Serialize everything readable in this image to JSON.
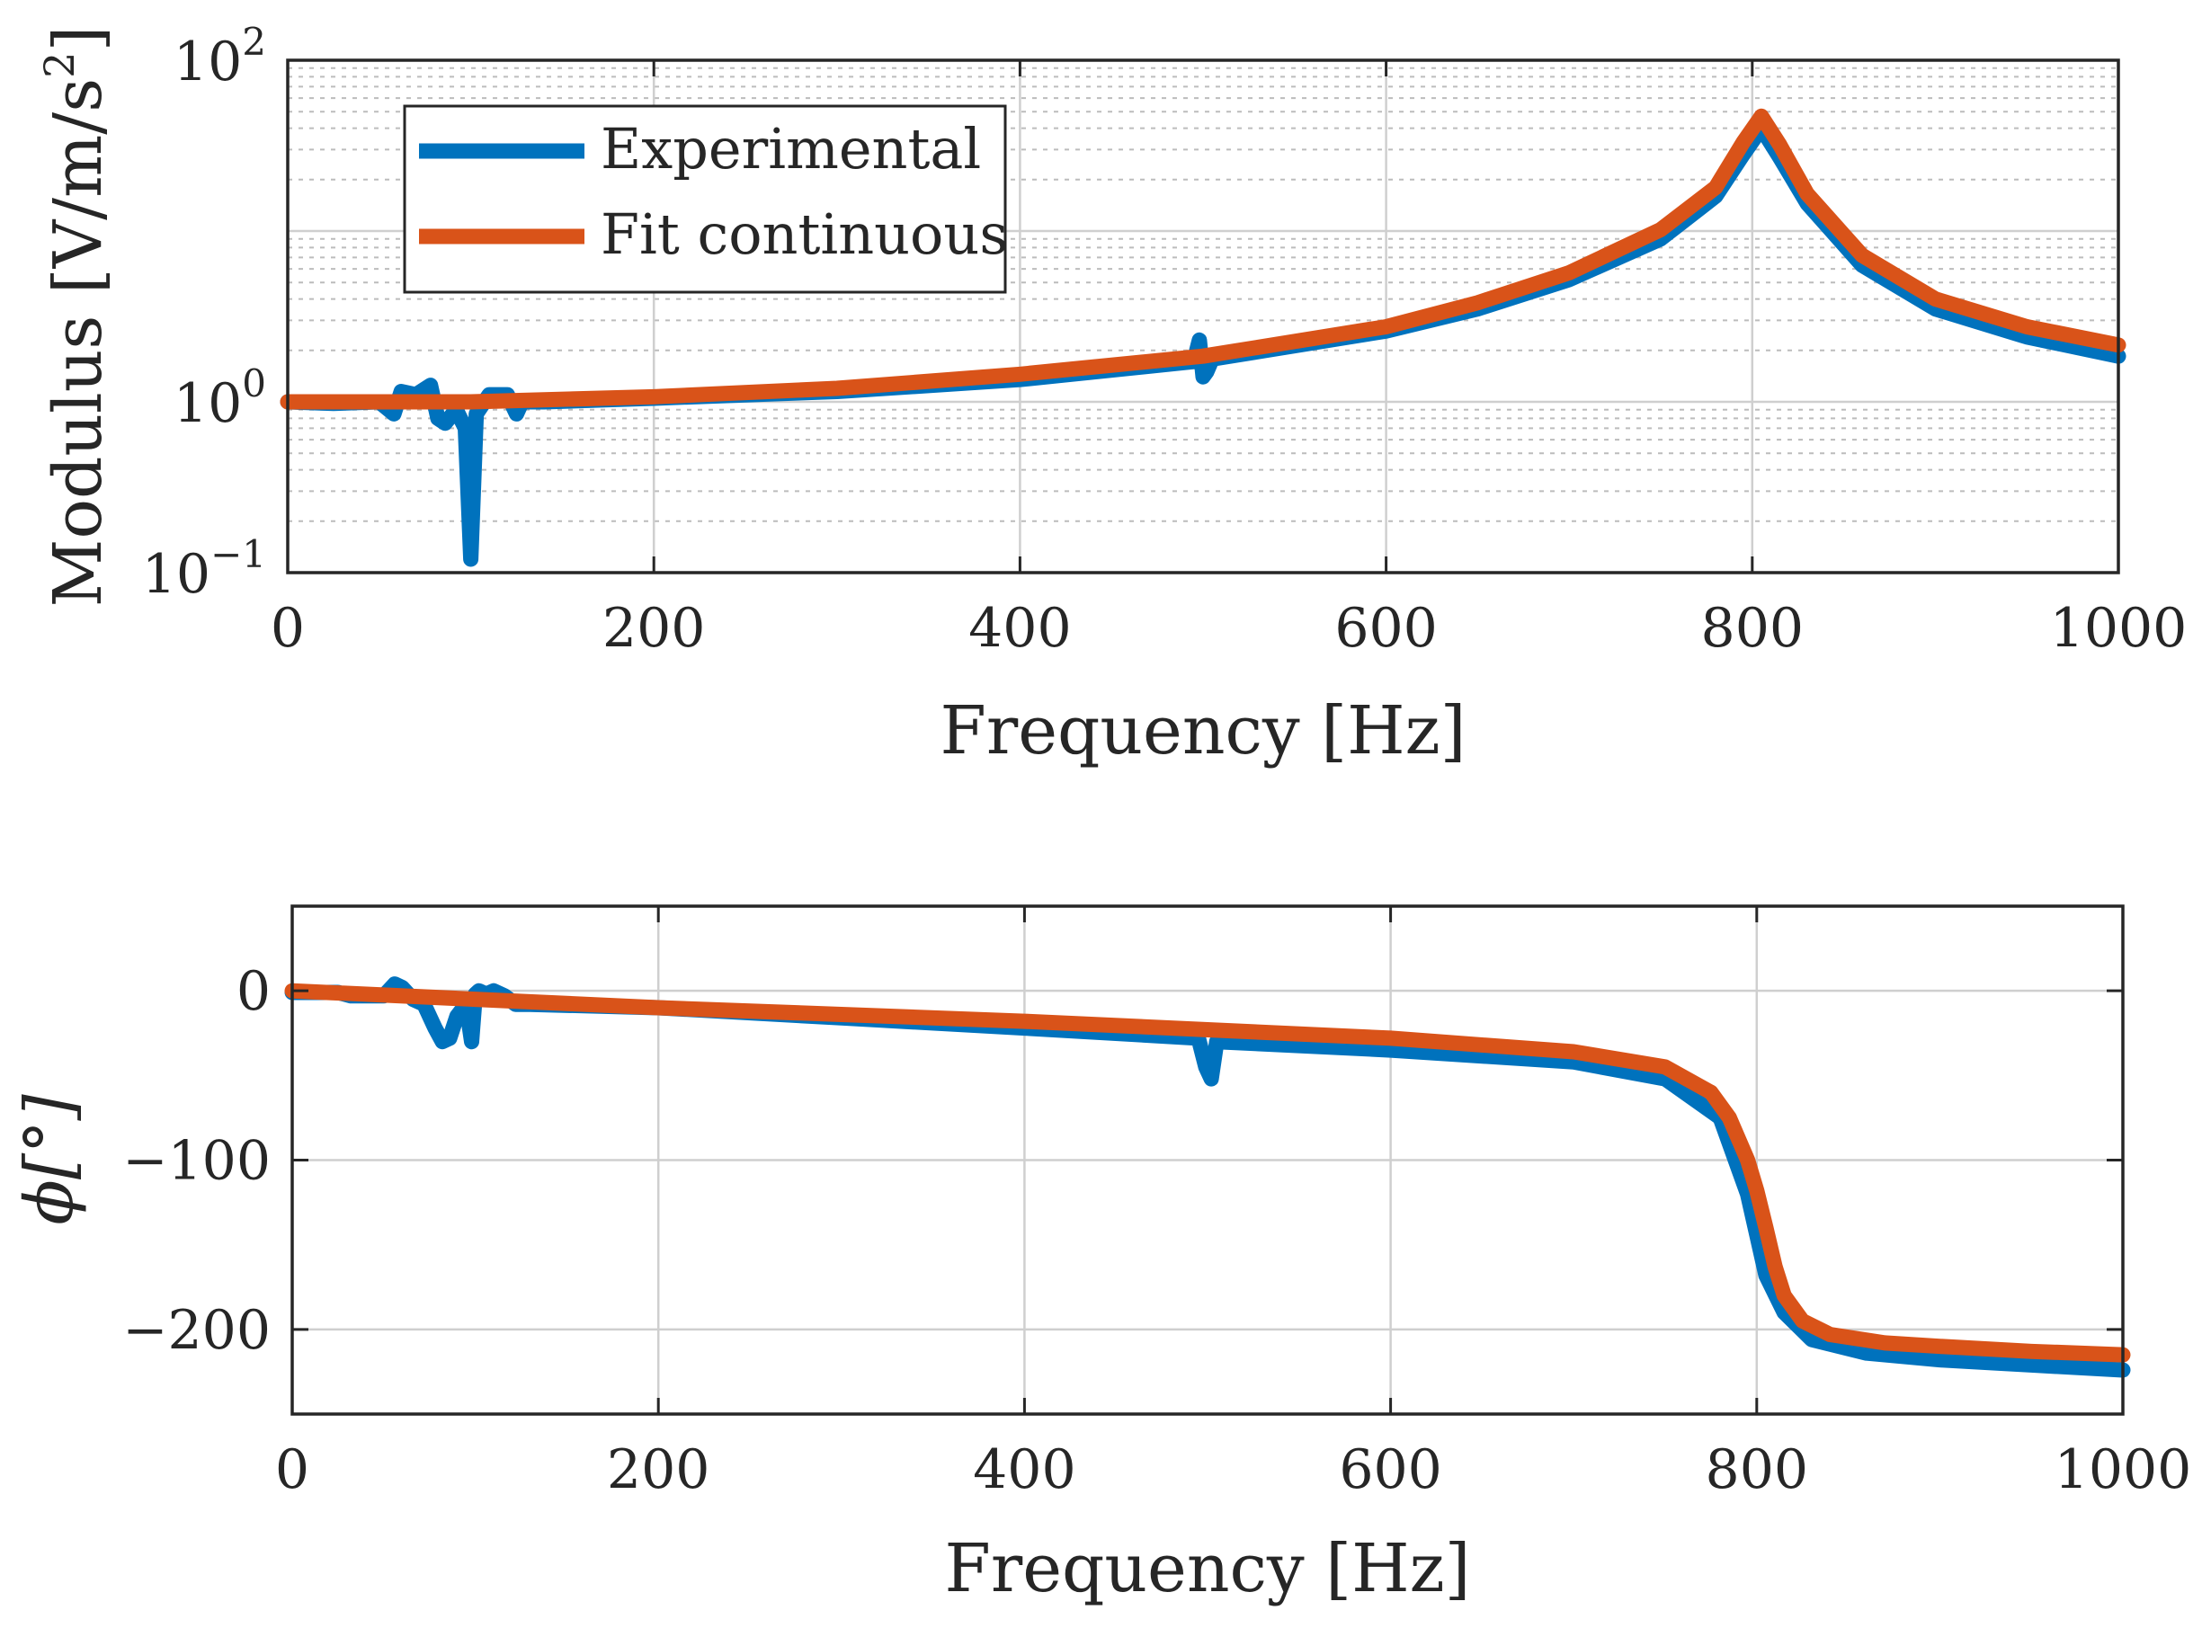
{
  "colors": {
    "experimental": "#0072BD",
    "fit": "#D95319",
    "axis": "#262626",
    "grid": "#cfcfcf"
  },
  "legend": {
    "items": [
      {
        "label": "Experimental",
        "color": "#0072BD"
      },
      {
        "label": "Fit continuous",
        "color": "#D95319"
      }
    ]
  },
  "chart_data": [
    {
      "type": "line",
      "name": "magnitude",
      "xlabel": "Frequency [Hz]",
      "ylabel_prefix": "Modulus [V/m/s",
      "ylabel_sup": "2",
      "ylabel_suffix": "]",
      "yscale": "log",
      "xlim": [
        0,
        1000
      ],
      "ylim_log10": [
        -1,
        2
      ],
      "xticks": [
        0,
        200,
        400,
        600,
        800,
        1000
      ],
      "xtick_labels": [
        "0",
        "200",
        "400",
        "600",
        "800",
        "1000"
      ],
      "yticks_log10": [
        -1,
        0,
        2
      ],
      "ytick_base": "10",
      "ytick_exponents": [
        "−1",
        "0",
        "2"
      ],
      "grid": true,
      "legend_placement": "top-left",
      "series": [
        {
          "name": "Experimental",
          "x": [
            0,
            25,
            50,
            58,
            62,
            70,
            78,
            82,
            86,
            92,
            97,
            100,
            103,
            110,
            120,
            125,
            128,
            140,
            200,
            300,
            400,
            495,
            498,
            500,
            502,
            505,
            600,
            650,
            700,
            750,
            780,
            795,
            805,
            815,
            830,
            860,
            900,
            950,
            1000
          ],
          "y": [
            1.0,
            0.98,
            1.0,
            0.85,
            1.15,
            1.1,
            1.25,
            0.8,
            0.75,
            0.9,
            0.7,
            0.12,
            0.85,
            1.1,
            1.1,
            0.85,
            1.0,
            1.0,
            1.05,
            1.15,
            1.35,
            1.72,
            2.3,
            1.4,
            1.5,
            1.78,
            2.6,
            3.5,
            5.2,
            9.0,
            16.0,
            28.0,
            40.0,
            27.0,
            14.5,
            6.3,
            3.5,
            2.4,
            1.85
          ]
        },
        {
          "name": "Fit continuous",
          "x": [
            0,
            100,
            200,
            300,
            400,
            500,
            600,
            650,
            700,
            750,
            780,
            795,
            805,
            815,
            830,
            860,
            900,
            950,
            1000
          ],
          "y": [
            1.0,
            1.0,
            1.07,
            1.2,
            1.45,
            1.85,
            2.75,
            3.8,
            5.7,
            10.2,
            18.0,
            33.0,
            47.0,
            32.0,
            16.5,
            7.2,
            4.0,
            2.75,
            2.15
          ]
        }
      ]
    },
    {
      "type": "line",
      "name": "phase",
      "xlabel": "Frequency [Hz]",
      "ylabel": "ϕ[°]",
      "xlim": [
        0,
        1000
      ],
      "ylim": [
        -250,
        50
      ],
      "xticks": [
        0,
        200,
        400,
        600,
        800,
        1000
      ],
      "xtick_labels": [
        "0",
        "200",
        "400",
        "600",
        "800",
        "1000"
      ],
      "yticks": [
        0,
        -100,
        -200
      ],
      "ytick_labels": [
        "0",
        "−100",
        "−200"
      ],
      "grid": true,
      "series": [
        {
          "name": "Experimental",
          "x": [
            0,
            25,
            32,
            40,
            50,
            56,
            60,
            66,
            72,
            78,
            82,
            86,
            90,
            95,
            98,
            100,
            102,
            106,
            110,
            116,
            122,
            130,
            200,
            300,
            400,
            495,
            499,
            502,
            505,
            600,
            700,
            750,
            780,
            795,
            805,
            815,
            830,
            860,
            900,
            950,
            1000
          ],
          "y": [
            -1,
            -1,
            -3,
            -3,
            -3,
            4,
            2,
            -5,
            -8,
            -22,
            -30,
            -28,
            -15,
            -8,
            -30,
            -2,
            0,
            -2,
            0,
            -3,
            -8,
            -8,
            -10,
            -16,
            -22,
            -28,
            -45,
            -52,
            -30,
            -35,
            -42,
            -52,
            -75,
            -120,
            -168,
            -190,
            -206,
            -214,
            -218,
            -221,
            -224
          ]
        },
        {
          "name": "Fit continuous",
          "x": [
            0,
            100,
            200,
            300,
            400,
            500,
            600,
            700,
            750,
            775,
            785,
            795,
            800,
            805,
            810,
            815,
            825,
            840,
            870,
            900,
            950,
            1000
          ],
          "y": [
            0,
            -5,
            -10,
            -14,
            -18,
            -23,
            -28,
            -36,
            -45,
            -60,
            -75,
            -100,
            -118,
            -140,
            -163,
            -180,
            -195,
            -203,
            -208,
            -210,
            -213,
            -215
          ]
        }
      ]
    }
  ]
}
